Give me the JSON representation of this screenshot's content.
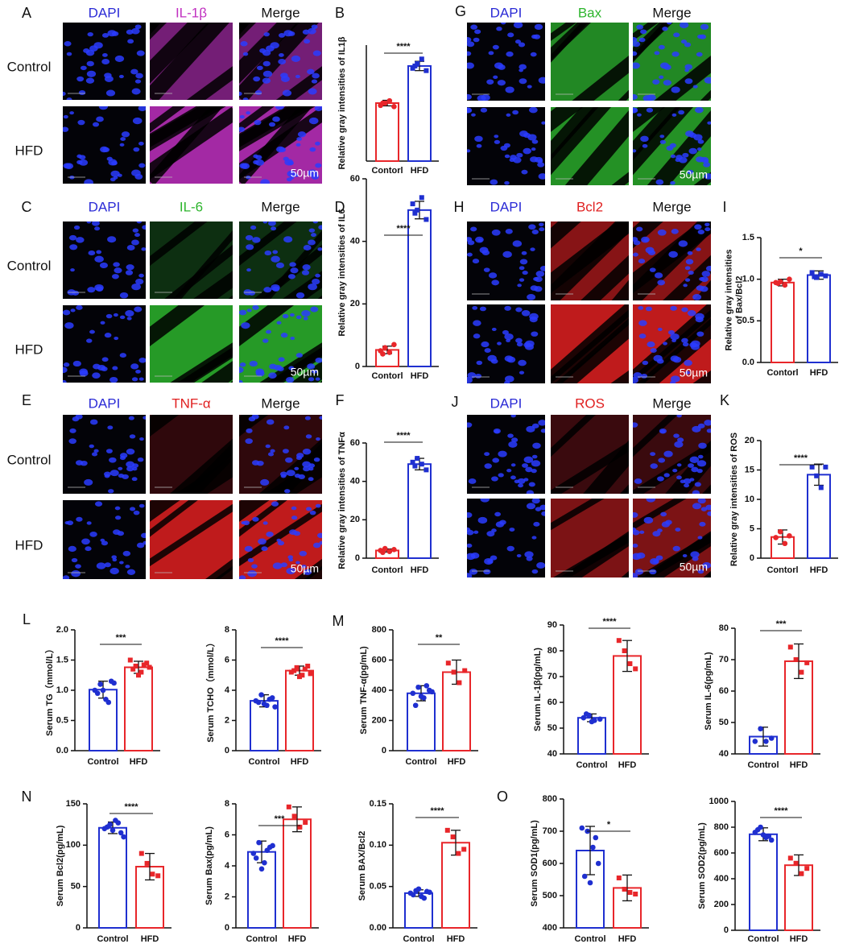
{
  "image_panels": [
    {
      "letter": "A",
      "channels": [
        "DAPI",
        "IL-1β",
        "Merge"
      ],
      "channel_colors": [
        "#2b2bd6",
        "#c030c0",
        "#111111"
      ],
      "rows": [
        "Control",
        "HFD"
      ],
      "scale": "50µm"
    },
    {
      "letter": "C",
      "channels": [
        "DAPI",
        "IL-6",
        "Merge"
      ],
      "channel_colors": [
        "#2b2bd6",
        "#2db52d",
        "#111111"
      ],
      "rows": [
        "Control",
        "HFD"
      ],
      "scale": "50µm"
    },
    {
      "letter": "E",
      "channels": [
        "DAPI",
        "TNF-α",
        "Merge"
      ],
      "channel_colors": [
        "#2b2bd6",
        "#e02020",
        "#111111"
      ],
      "rows": [
        "Control",
        "HFD"
      ],
      "scale": "50µm"
    },
    {
      "letter": "G",
      "channels": [
        "DAPI",
        "Bax",
        "Merge"
      ],
      "channel_colors": [
        "#2b2bd6",
        "#2db52d",
        "#111111"
      ],
      "scale": "50µm"
    },
    {
      "letter": "H",
      "channels": [
        "DAPI",
        "Bcl2",
        "Merge"
      ],
      "channel_colors": [
        "#2b2bd6",
        "#e02020",
        "#111111"
      ],
      "scale": "50µm"
    },
    {
      "letter": "J",
      "channels": [
        "DAPI",
        "ROS",
        "Merge"
      ],
      "channel_colors": [
        "#2b2bd6",
        "#e02020",
        "#111111"
      ],
      "scale": "50µm"
    }
  ],
  "chart_data": [
    {
      "type": "bar",
      "panel_label": "B",
      "ylabel": "Relative gray intensities of IL1β",
      "categories": [
        "Contorl",
        "HFD"
      ],
      "colors": [
        "#e8262a",
        "#1f2fd0"
      ],
      "values": [
        25,
        41
      ],
      "errors": [
        1.2,
        2
      ],
      "points": [
        [
          24,
          25,
          26,
          23.5,
          25
        ],
        [
          40,
          42,
          44,
          39,
          41
        ]
      ],
      "ylim": [
        0,
        50
      ],
      "significance": "****"
    },
    {
      "type": "bar",
      "panel_label": "D",
      "ylabel": "Relative gray intensities of IL6",
      "categories": [
        "Contorl",
        "HFD"
      ],
      "colors": [
        "#e8262a",
        "#1f2fd0"
      ],
      "values": [
        5.3,
        50
      ],
      "errors": [
        1.2,
        2.8
      ],
      "points": [
        [
          5,
          6,
          4.5,
          7,
          4
        ],
        [
          52,
          50,
          54,
          47,
          49
        ]
      ],
      "ylim": [
        0,
        60
      ],
      "yticks": [
        0,
        20,
        40,
        60
      ],
      "significance": "****"
    },
    {
      "type": "bar",
      "panel_label": "F",
      "ylabel": "Relative gray intensities of TNFα",
      "categories": [
        "Contorl",
        "HFD"
      ],
      "colors": [
        "#e8262a",
        "#1f2fd0"
      ],
      "values": [
        4,
        49
      ],
      "errors": [
        0.8,
        3
      ],
      "points": [
        [
          4,
          5,
          3.5,
          4.5,
          3
        ],
        [
          50,
          52,
          49,
          46,
          48
        ]
      ],
      "ylim": [
        0,
        60
      ],
      "yticks": [
        0,
        20,
        40,
        60
      ],
      "significance": "****"
    },
    {
      "type": "bar",
      "panel_label": "I",
      "ylabel": [
        "Relative gray intensities",
        "of Bax/Bcl2"
      ],
      "categories": [
        "Contorl",
        "HFD"
      ],
      "colors": [
        "#e8262a",
        "#1f2fd0"
      ],
      "values": [
        0.96,
        1.05
      ],
      "errors": [
        0.04,
        0.05
      ],
      "points": [
        [
          0.96,
          0.97,
          0.93,
          1.0,
          0.95
        ],
        [
          1.08,
          1.02,
          1.06,
          1.04,
          1.03
        ]
      ],
      "ylim": [
        0,
        1.5
      ],
      "yticks": [
        {
          "value": 0,
          "label": "0.0"
        },
        0.5,
        {
          "value": 1,
          "label": "1.0"
        },
        1.5
      ],
      "significance": "*"
    },
    {
      "type": "bar",
      "panel_label": "K",
      "ylabel": "Relative gray intensities of ROS",
      "categories": [
        "Contorl",
        "HFD"
      ],
      "colors": [
        "#e8262a",
        "#1f2fd0"
      ],
      "values": [
        3.6,
        14.2
      ],
      "errors": [
        1.2,
        1.8
      ],
      "points": [
        [
          3.5,
          4.5,
          2.5,
          3.8
        ],
        [
          15.5,
          14,
          12,
          15.5
        ]
      ],
      "ylim": [
        0,
        20
      ],
      "yticks": [
        0,
        5,
        10,
        15,
        20
      ],
      "significance": "****"
    },
    {
      "type": "bar",
      "panel_label": "L",
      "ylabel": "Serum TG（mmol/L）",
      "categories": [
        "Control",
        "HFD"
      ],
      "colors": [
        "#1f2fd0",
        "#e8262a"
      ],
      "values": [
        1.01,
        1.38
      ],
      "errors": [
        0.14,
        0.1
      ],
      "points": [
        [
          1.0,
          1.1,
          0.85,
          1.15,
          0.95,
          1.0,
          0.8,
          1.12
        ],
        [
          1.5,
          1.4,
          1.3,
          1.45,
          1.35,
          1.25,
          1.42,
          1.38
        ]
      ],
      "ylim": [
        0,
        2
      ],
      "yticks": [
        {
          "value": 0,
          "label": "0.0"
        },
        0.5,
        {
          "value": 1,
          "label": "1.0"
        },
        1.5,
        {
          "value": 2,
          "label": "2.0"
        }
      ],
      "significance": "***"
    },
    {
      "type": "bar",
      "ylabel": "Serum TCHO（mmol/L）",
      "categories": [
        "Control",
        "HFD"
      ],
      "colors": [
        "#1f2fd0",
        "#e8262a"
      ],
      "values": [
        3.3,
        5.3
      ],
      "errors": [
        0.4,
        0.3
      ],
      "points": [
        [
          3.3,
          3.7,
          3.0,
          3.5,
          3.2,
          3.1,
          3.4,
          2.9
        ],
        [
          5.2,
          5.5,
          5.0,
          5.6,
          5.3,
          4.9,
          5.4,
          5.1
        ]
      ],
      "ylim": [
        0,
        8
      ],
      "yticks": [
        0,
        2,
        4,
        6,
        8
      ],
      "significance": "****"
    },
    {
      "type": "bar",
      "panel_label": "M",
      "ylabel": "Serum TNF-α(pg/mL)",
      "categories": [
        "Control",
        "HFD"
      ],
      "colors": [
        "#1f2fd0",
        "#e8262a"
      ],
      "values": [
        380,
        520
      ],
      "errors": [
        50,
        80
      ],
      "points": [
        [
          380,
          420,
          350,
          400,
          300,
          360,
          430,
          390
        ],
        [
          580,
          520,
          450,
          530
        ]
      ],
      "ylim": [
        0,
        800
      ],
      "yticks": [
        0,
        200,
        400,
        600,
        800
      ],
      "significance": "**"
    },
    {
      "type": "bar",
      "ylabel": "Serum IL-1β(pg/mL)",
      "categories": [
        "Control",
        "HFD"
      ],
      "colors": [
        "#1f2fd0",
        "#e8262a"
      ],
      "values": [
        54,
        78
      ],
      "errors": [
        1.5,
        6
      ],
      "points": [
        [
          54,
          55,
          53,
          53.5,
          55.5,
          52.5
        ],
        [
          84,
          80,
          75,
          73
        ]
      ],
      "ylim": [
        40,
        90
      ],
      "yticks": [
        40,
        50,
        60,
        70,
        80,
        90
      ],
      "significance": "****"
    },
    {
      "type": "bar",
      "ylabel": "Serum IL-6(pg/mL)",
      "categories": [
        "Control",
        "HFD"
      ],
      "colors": [
        "#1f2fd0",
        "#e8262a"
      ],
      "values": [
        45.5,
        69.5
      ],
      "errors": [
        3,
        5.5
      ],
      "points": [
        [
          44,
          48,
          44,
          45
        ],
        [
          74,
          70,
          66,
          69
        ]
      ],
      "ylim": [
        40,
        80
      ],
      "yticks": [
        40,
        50,
        60,
        70,
        80
      ],
      "significance": "***"
    },
    {
      "type": "bar",
      "panel_label": "N",
      "ylabel": "Serum Bcl2(pg/mL)",
      "categories": [
        "Control",
        "HFD"
      ],
      "colors": [
        "#1f2fd0",
        "#e8262a"
      ],
      "values": [
        121,
        74
      ],
      "errors": [
        7,
        16
      ],
      "points": [
        [
          120,
          125,
          130,
          115,
          122,
          118,
          127,
          110
        ],
        [
          90,
          78,
          65,
          63
        ]
      ],
      "ylim": [
        0,
        150
      ],
      "yticks": [
        0,
        50,
        100,
        150
      ],
      "significance": "****"
    },
    {
      "type": "bar",
      "ylabel": "Serum Bax(pg/mL)",
      "categories": [
        "Control",
        "HFD"
      ],
      "colors": [
        "#1f2fd0",
        "#e8262a"
      ],
      "values": [
        4.9,
        7.0
      ],
      "errors": [
        0.7,
        0.8
      ],
      "points": [
        [
          4.8,
          5.5,
          4.2,
          5.2,
          4.5,
          3.8,
          5.0,
          5.3
        ],
        [
          7.8,
          7.2,
          6.5,
          6.8
        ]
      ],
      "ylim": [
        0,
        8
      ],
      "yticks": [
        0,
        2,
        4,
        6,
        8
      ],
      "significance": "***"
    },
    {
      "type": "bar",
      "ylabel": "Serum BAX/Bcl2",
      "categories": [
        "Control",
        "HFD"
      ],
      "colors": [
        "#1f2fd0",
        "#e8262a"
      ],
      "values": [
        0.042,
        0.103
      ],
      "errors": [
        0.004,
        0.015
      ],
      "points": [
        [
          0.042,
          0.045,
          0.038,
          0.044,
          0.04,
          0.047,
          0.036,
          0.043
        ],
        [
          0.118,
          0.11,
          0.09,
          0.095
        ]
      ],
      "ylim": [
        0,
        0.15
      ],
      "yticks": [
        {
          "value": 0,
          "label": "0.00"
        },
        {
          "value": 0.05,
          "label": "0.05"
        },
        {
          "value": 0.1,
          "label": "0.10"
        },
        {
          "value": 0.15,
          "label": "0.15"
        }
      ],
      "significance": "****"
    },
    {
      "type": "bar",
      "panel_label": "O",
      "ylabel": "Serum SOD1(pg/mL)",
      "categories": [
        "Control",
        "HFD"
      ],
      "colors": [
        "#1f2fd0",
        "#e8262a"
      ],
      "values": [
        640,
        524
      ],
      "errors": [
        75,
        40
      ],
      "points": [
        [
          710,
          700,
          650,
          600,
          560,
          540,
          680
        ],
        [
          555,
          520,
          510,
          505
        ]
      ],
      "ylim": [
        400,
        800
      ],
      "yticks": [
        400,
        500,
        600,
        700,
        800
      ],
      "significance": "*"
    },
    {
      "type": "bar",
      "ylabel": "Serum SOD2(pg/mL)",
      "categories": [
        "Control",
        "HFD"
      ],
      "colors": [
        "#1f2fd0",
        "#e8262a"
      ],
      "values": [
        745,
        505
      ],
      "errors": [
        50,
        80
      ],
      "points": [
        [
          760,
          800,
          720,
          700,
          780,
          740,
          730
        ],
        [
          560,
          520,
          440,
          480
        ]
      ],
      "ylim": [
        0,
        1000
      ],
      "yticks": [
        0,
        200,
        400,
        600,
        800,
        1000
      ],
      "significance": "****"
    }
  ]
}
